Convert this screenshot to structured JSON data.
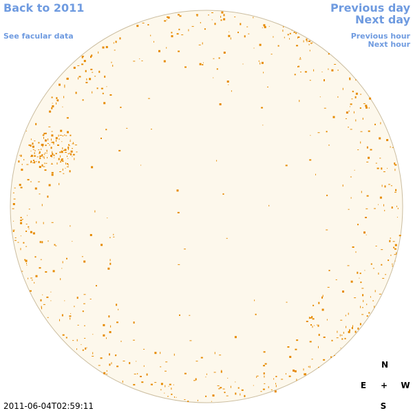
{
  "nav": {
    "back": "Back to 2011",
    "facular": "See facular data",
    "prev_day": "Previous day",
    "next_day": "Next day",
    "prev_hour": "Previous hour",
    "next_hour": "Next hour"
  },
  "timestamp": "2011-06-04T02:59:11",
  "compass": {
    "n": "N",
    "e": "E",
    "center": "+",
    "w": "W",
    "s": "S"
  }
}
